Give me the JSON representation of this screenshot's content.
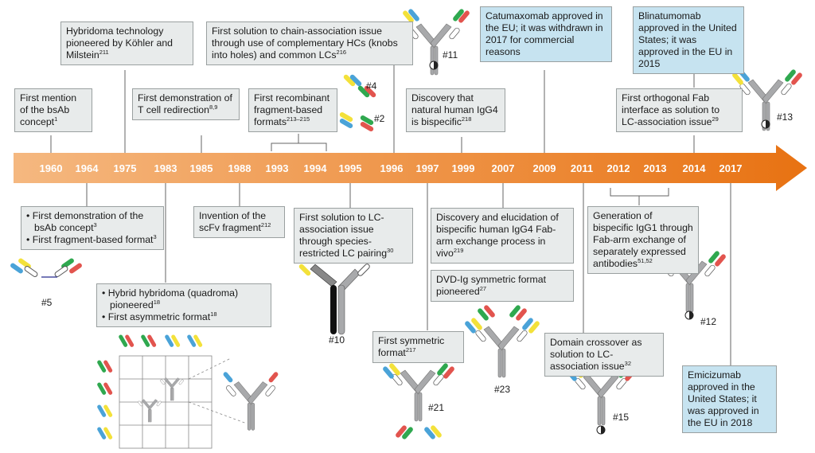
{
  "colors": {
    "arrow_start": "#f5b880",
    "arrow_end": "#e87212",
    "box_grey": "#e8ebeb",
    "box_blue": "#c6e3f0",
    "heavy_chain": "#a8a9ab",
    "light_chain_white": "#ffffff",
    "domain_yellow": "#f3e13a",
    "domain_blue": "#4aa3d8",
    "domain_green": "#2fa84f",
    "domain_red": "#e2544e"
  },
  "timeline": {
    "years": [
      "1960",
      "1964",
      "1975",
      "1983",
      "1985",
      "1988",
      "1993",
      "1994",
      "1995",
      "1996",
      "1997",
      "1999",
      "2007",
      "2009",
      "2011",
      "2012",
      "2013",
      "2014",
      "2017"
    ]
  },
  "events": {
    "mention": {
      "text": "First mention of the bsAb concept",
      "ref": "1"
    },
    "hybridoma": {
      "text": "Hybridoma technology pioneered by Köhler and Milstein",
      "ref": "211"
    },
    "tcell": {
      "text": "First demonstration of T cell redirection",
      "ref": "8,9"
    },
    "knobs": {
      "text": "First solution to chain-association issue through use of complementary HCs (knobs into holes) and common LCs",
      "ref": "216"
    },
    "fragment": {
      "text": "First recombinant fragment-based formats",
      "ref": "213–215"
    },
    "igg4": {
      "text": "Discovery that natural human IgG4 is bispecific",
      "ref": "218"
    },
    "catumaxomab": {
      "text": "Catumaxomab approved in the EU; it was withdrawn in 2017 for commercial reasons"
    },
    "blinatumomab": {
      "text": "Blinatumomab approved in the United States; it was approved in the EU in 2015"
    },
    "orthogonal": {
      "text": "First orthogonal Fab interface as solution to LC-association issue",
      "ref": "29"
    },
    "bsab_demo": {
      "items": [
        {
          "text": "First demonstration of the bsAb concept",
          "ref": "3"
        },
        {
          "text": "First fragment-based format",
          "ref": "3"
        }
      ]
    },
    "scfv": {
      "text": "Invention of the scFv fragment",
      "ref": "212"
    },
    "species": {
      "text": "First solution to LC-association issue through species-restricted LC pairing",
      "ref": "30"
    },
    "fabarm": {
      "text": "Discovery and elucidation of bispecific human IgG4 Fab-arm exchange process in vivo",
      "ref": "219"
    },
    "dvdig": {
      "text": "DVD-Ig symmetric format pioneered",
      "ref": "27"
    },
    "igg1": {
      "text": "Generation of bispecific IgG1 through Fab-arm exchange of separately expressed antibodies",
      "ref": "51,52"
    },
    "quadroma": {
      "items": [
        {
          "text": "Hybrid hybridoma (quadroma) pioneered",
          "ref": "18"
        },
        {
          "text": "First asymmetric format",
          "ref": "18"
        }
      ]
    },
    "symmetric": {
      "text": "First symmetric format",
      "ref": "217"
    },
    "crossover": {
      "text": "Domain crossover as solution to LC-association issue",
      "ref": "32"
    },
    "emicizumab": {
      "text": "Emicizumab approved in the United States; it was approved in the EU in 2018"
    }
  },
  "format_labels": {
    "f11": "#11",
    "f4": "#4",
    "f2": "#2",
    "f13": "#13",
    "f5": "#5",
    "f10": "#10",
    "f21": "#21",
    "f23": "#23",
    "f15": "#15",
    "f12": "#12"
  }
}
